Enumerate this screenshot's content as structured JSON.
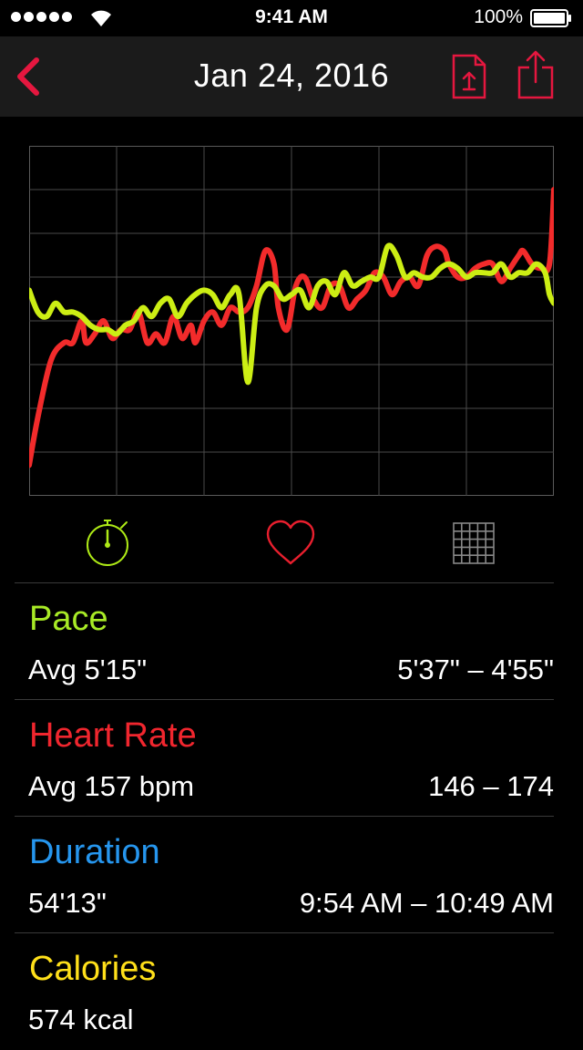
{
  "status": {
    "time": "9:41 AM",
    "battery": "100%",
    "signal_bars": 5,
    "icons": [
      "signal-dots-icon",
      "wifi-icon",
      "battery-icon"
    ]
  },
  "nav": {
    "title": "Jan 24, 2016",
    "icons": [
      "chevron-left-icon",
      "export-file-icon",
      "share-icon"
    ],
    "accent_color": "#e5173f",
    "bar_color": "#1b1b1b"
  },
  "chart_data": {
    "type": "line",
    "grid": true,
    "y_range": [
      0,
      8
    ],
    "x_range": [
      0,
      120
    ],
    "series": [
      {
        "color": "#f22b2b",
        "points": [
          [
            0,
            0.7
          ],
          [
            2,
            1.8
          ],
          [
            5,
            3.1
          ],
          [
            8,
            3.5
          ],
          [
            10,
            3.5
          ],
          [
            12,
            4.0
          ],
          [
            13,
            3.5
          ],
          [
            15,
            3.7
          ],
          [
            17,
            4.0
          ],
          [
            19,
            3.6
          ],
          [
            21,
            3.8
          ],
          [
            23,
            3.8
          ],
          [
            25,
            4.2
          ],
          [
            27,
            3.5
          ],
          [
            29,
            3.7
          ],
          [
            31,
            3.5
          ],
          [
            33,
            4.1
          ],
          [
            35,
            3.6
          ],
          [
            37,
            3.9
          ],
          [
            38,
            3.5
          ],
          [
            40,
            4.0
          ],
          [
            42,
            4.2
          ],
          [
            44,
            3.9
          ],
          [
            46,
            4.3
          ],
          [
            48,
            4.2
          ],
          [
            50,
            4.3
          ],
          [
            52,
            4.8
          ],
          [
            54,
            5.6
          ],
          [
            56,
            5.3
          ],
          [
            57,
            4.3
          ],
          [
            59,
            3.8
          ],
          [
            61,
            4.8
          ],
          [
            63,
            5.0
          ],
          [
            65,
            4.5
          ],
          [
            67,
            4.3
          ],
          [
            69,
            4.8
          ],
          [
            71,
            4.8
          ],
          [
            73,
            4.3
          ],
          [
            75,
            4.5
          ],
          [
            77,
            4.7
          ],
          [
            79,
            5.1
          ],
          [
            81,
            5.0
          ],
          [
            83,
            4.6
          ],
          [
            85,
            4.9
          ],
          [
            87,
            5.0
          ],
          [
            89,
            4.8
          ],
          [
            91,
            5.5
          ],
          [
            93,
            5.7
          ],
          [
            95,
            5.6
          ],
          [
            96,
            5.3
          ],
          [
            98,
            5.0
          ],
          [
            100,
            5.0
          ],
          [
            102,
            5.2
          ],
          [
            104,
            5.3
          ],
          [
            106,
            5.3
          ],
          [
            108,
            4.9
          ],
          [
            110,
            5.2
          ],
          [
            112,
            5.5
          ],
          [
            113,
            5.6
          ],
          [
            115,
            5.3
          ],
          [
            117,
            5.2
          ],
          [
            119,
            5.3
          ],
          [
            120,
            7.0
          ]
        ]
      },
      {
        "color": "#ccee14",
        "points": [
          [
            0,
            4.7
          ],
          [
            2,
            4.2
          ],
          [
            4,
            4.1
          ],
          [
            6,
            4.4
          ],
          [
            8,
            4.2
          ],
          [
            10,
            4.2
          ],
          [
            12,
            4.1
          ],
          [
            14,
            3.9
          ],
          [
            16,
            3.8
          ],
          [
            18,
            3.8
          ],
          [
            20,
            3.7
          ],
          [
            22,
            3.9
          ],
          [
            24,
            4.0
          ],
          [
            26,
            4.3
          ],
          [
            28,
            4.1
          ],
          [
            30,
            4.4
          ],
          [
            32,
            4.5
          ],
          [
            34,
            4.1
          ],
          [
            36,
            4.4
          ],
          [
            38,
            4.6
          ],
          [
            40,
            4.7
          ],
          [
            42,
            4.6
          ],
          [
            44,
            4.3
          ],
          [
            46,
            4.6
          ],
          [
            48,
            4.6
          ],
          [
            50,
            2.6
          ],
          [
            52,
            4.3
          ],
          [
            54,
            4.8
          ],
          [
            56,
            4.8
          ],
          [
            58,
            4.5
          ],
          [
            60,
            4.6
          ],
          [
            62,
            4.7
          ],
          [
            64,
            4.3
          ],
          [
            66,
            4.8
          ],
          [
            68,
            4.9
          ],
          [
            70,
            4.6
          ],
          [
            72,
            5.1
          ],
          [
            74,
            4.8
          ],
          [
            76,
            4.9
          ],
          [
            78,
            5.0
          ],
          [
            80,
            5.0
          ],
          [
            82,
            5.7
          ],
          [
            84,
            5.5
          ],
          [
            86,
            5.0
          ],
          [
            88,
            5.1
          ],
          [
            90,
            5.0
          ],
          [
            92,
            5.0
          ],
          [
            94,
            5.2
          ],
          [
            96,
            5.3
          ],
          [
            98,
            5.2
          ],
          [
            100,
            5.0
          ],
          [
            102,
            5.1
          ],
          [
            104,
            5.1
          ],
          [
            106,
            5.1
          ],
          [
            108,
            5.3
          ],
          [
            110,
            5.0
          ],
          [
            112,
            5.1
          ],
          [
            114,
            5.1
          ],
          [
            116,
            5.3
          ],
          [
            118,
            5.1
          ],
          [
            119,
            4.6
          ],
          [
            120,
            4.4
          ]
        ]
      }
    ]
  },
  "modes": [
    {
      "icon": "stopwatch-icon",
      "color": "#aeea16"
    },
    {
      "icon": "heart-icon",
      "color": "#e81f2e"
    },
    {
      "icon": "grid-icon",
      "color": "#888888"
    }
  ],
  "stats": {
    "pace": {
      "title": "Pace",
      "color": "#a8ea26",
      "left": "Avg 5'15\"",
      "right": "5'37\" – 4'55\""
    },
    "heart": {
      "title": "Heart Rate",
      "color": "#f0262e",
      "left": "Avg 157 bpm",
      "right": "146 – 174"
    },
    "duration": {
      "title": "Duration",
      "color": "#2696ee",
      "left": "54'13\"",
      "right": "9:54 AM – 10:49 AM"
    },
    "calories": {
      "title": "Calories",
      "color": "#ffe01a",
      "left": "574 kcal",
      "right": ""
    }
  }
}
